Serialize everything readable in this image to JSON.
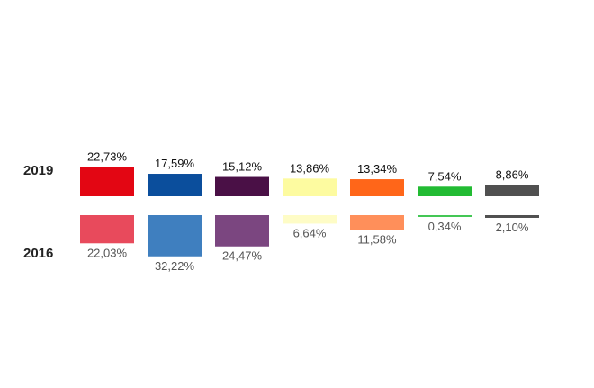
{
  "chart_data": {
    "type": "bar",
    "series": [
      {
        "name": "2019",
        "values": [
          22.73,
          17.59,
          15.12,
          13.86,
          13.34,
          7.54,
          8.86
        ],
        "labels": [
          "22,73%",
          "17,59%",
          "15,12%",
          "13,86%",
          "13,34%",
          "7,54%",
          "8,86%"
        ],
        "colors": [
          "#e30613",
          "#0b4e9c",
          "#4a1046",
          "#fdfba0",
          "#ff6619",
          "#22bb33",
          "#505050"
        ]
      },
      {
        "name": "2016",
        "values": [
          22.03,
          32.22,
          24.47,
          6.64,
          11.58,
          0.34,
          2.1
        ],
        "labels": [
          "22,03%",
          "32,22%",
          "24,47%",
          "6,64%",
          "11,58%",
          "0,34%",
          "2,10%"
        ],
        "colors": [
          "#e84a5c",
          "#3f7fbf",
          "#7b4680",
          "#fefcc6",
          "#ff8f5a",
          "#44c755",
          "#505050"
        ]
      }
    ]
  }
}
